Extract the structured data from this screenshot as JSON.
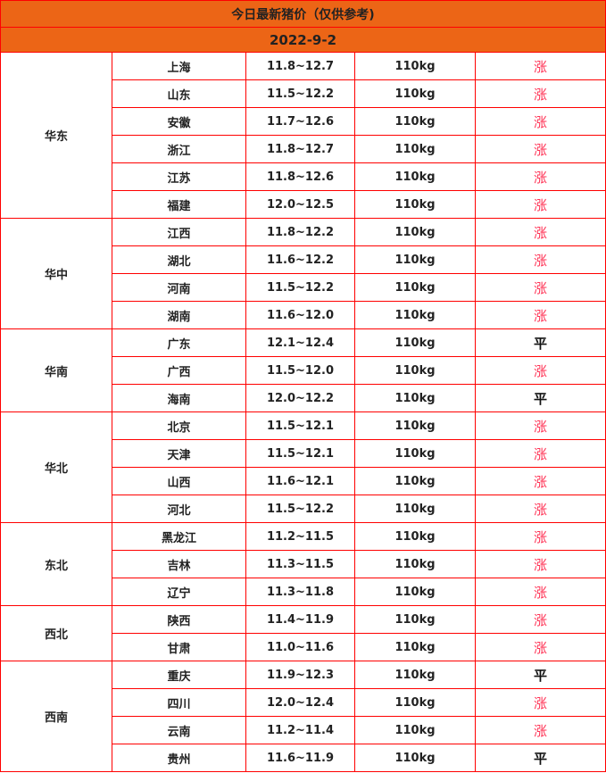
{
  "title": "今日最新猪价（仅供参考)",
  "date": "2022-9-2",
  "colors": {
    "header_bg": "#ec6516",
    "border": "#ff0000",
    "rise": "#ff3355",
    "flat": "#111111"
  },
  "regions": [
    {
      "name": "华东",
      "rows": [
        {
          "province": "上海",
          "price": "11.8~12.7",
          "weight": "110kg",
          "trend": "涨"
        },
        {
          "province": "山东",
          "price": "11.5~12.2",
          "weight": "110kg",
          "trend": "涨"
        },
        {
          "province": "安徽",
          "price": "11.7~12.6",
          "weight": "110kg",
          "trend": "涨"
        },
        {
          "province": "浙江",
          "price": "11.8~12.7",
          "weight": "110kg",
          "trend": "涨"
        },
        {
          "province": "江苏",
          "price": "11.8~12.6",
          "weight": "110kg",
          "trend": "涨"
        },
        {
          "province": "福建",
          "price": "12.0~12.5",
          "weight": "110kg",
          "trend": "涨"
        }
      ]
    },
    {
      "name": "华中",
      "rows": [
        {
          "province": "江西",
          "price": "11.8~12.2",
          "weight": "110kg",
          "trend": "涨"
        },
        {
          "province": "湖北",
          "price": "11.6~12.2",
          "weight": "110kg",
          "trend": "涨"
        },
        {
          "province": "河南",
          "price": "11.5~12.2",
          "weight": "110kg",
          "trend": "涨"
        },
        {
          "province": "湖南",
          "price": "11.6~12.0",
          "weight": "110kg",
          "trend": "涨"
        }
      ]
    },
    {
      "name": "华南",
      "rows": [
        {
          "province": "广东",
          "price": "12.1~12.4",
          "weight": "110kg",
          "trend": "平"
        },
        {
          "province": "广西",
          "price": "11.5~12.0",
          "weight": "110kg",
          "trend": "涨"
        },
        {
          "province": "海南",
          "price": "12.0~12.2",
          "weight": "110kg",
          "trend": "平"
        }
      ]
    },
    {
      "name": "华北",
      "rows": [
        {
          "province": "北京",
          "price": "11.5~12.1",
          "weight": "110kg",
          "trend": "涨"
        },
        {
          "province": "天津",
          "price": "11.5~12.1",
          "weight": "110kg",
          "trend": "涨"
        },
        {
          "province": "山西",
          "price": "11.6~12.1",
          "weight": "110kg",
          "trend": "涨"
        },
        {
          "province": "河北",
          "price": "11.5~12.2",
          "weight": "110kg",
          "trend": "涨"
        }
      ]
    },
    {
      "name": "东北",
      "rows": [
        {
          "province": "黑龙江",
          "price": "11.2~11.5",
          "weight": "110kg",
          "trend": "涨"
        },
        {
          "province": "吉林",
          "price": "11.3~11.5",
          "weight": "110kg",
          "trend": "涨"
        },
        {
          "province": "辽宁",
          "price": "11.3~11.8",
          "weight": "110kg",
          "trend": "涨"
        }
      ]
    },
    {
      "name": "西北",
      "rows": [
        {
          "province": "陕西",
          "price": "11.4~11.9",
          "weight": "110kg",
          "trend": "涨"
        },
        {
          "province": "甘肃",
          "price": "11.0~11.6",
          "weight": "110kg",
          "trend": "涨"
        }
      ]
    },
    {
      "name": "西南",
      "rows": [
        {
          "province": "重庆",
          "price": "11.9~12.3",
          "weight": "110kg",
          "trend": "平"
        },
        {
          "province": "四川",
          "price": "12.0~12.4",
          "weight": "110kg",
          "trend": "涨"
        },
        {
          "province": "云南",
          "price": "11.2~11.4",
          "weight": "110kg",
          "trend": "涨"
        },
        {
          "province": "贵州",
          "price": "11.6~11.9",
          "weight": "110kg",
          "trend": "平"
        }
      ]
    }
  ]
}
